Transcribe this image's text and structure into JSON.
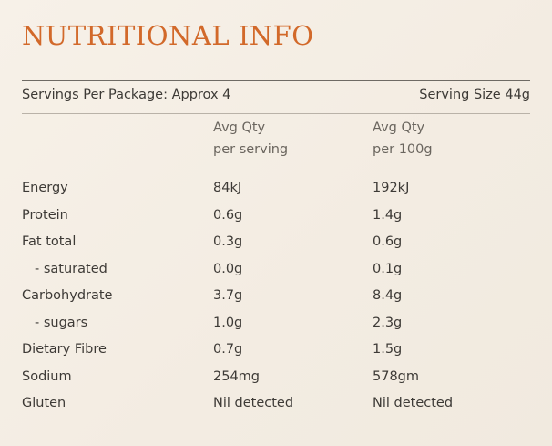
{
  "title": "NUTRITIONAL INFO",
  "servings_per_package": "Servings Per Package: Approx 4",
  "serving_size": "Serving Size 44g",
  "columns": {
    "per_serving": [
      "Avg Qty",
      "per serving"
    ],
    "per_100g": [
      "Avg Qty",
      "per 100g"
    ]
  },
  "rows": [
    {
      "label": "Energy",
      "per_serving": "84kJ",
      "per_100g": "192kJ"
    },
    {
      "label": "Protein",
      "per_serving": "0.6g",
      "per_100g": "1.4g"
    },
    {
      "label": "Fat total",
      "per_serving": "0.3g",
      "per_100g": "0.6g"
    },
    {
      "label": "- saturated",
      "per_serving": "0.0g",
      "per_100g": "0.1g"
    },
    {
      "label": "Carbohydrate",
      "per_serving": "3.7g",
      "per_100g": "8.4g"
    },
    {
      "label": "- sugars",
      "per_serving": "1.0g",
      "per_100g": "2.3g"
    },
    {
      "label": "Dietary Fibre",
      "per_serving": "0.7g",
      "per_100g": "1.5g"
    },
    {
      "label": "Sodium",
      "per_serving": "254mg",
      "per_100g": "578gm"
    },
    {
      "label": "Gluten",
      "per_serving": "Nil detected",
      "per_100g": "Nil detected"
    }
  ],
  "colors": {
    "title": "#d2692a",
    "text": "#3d3a36",
    "background": "#f5efe6"
  }
}
